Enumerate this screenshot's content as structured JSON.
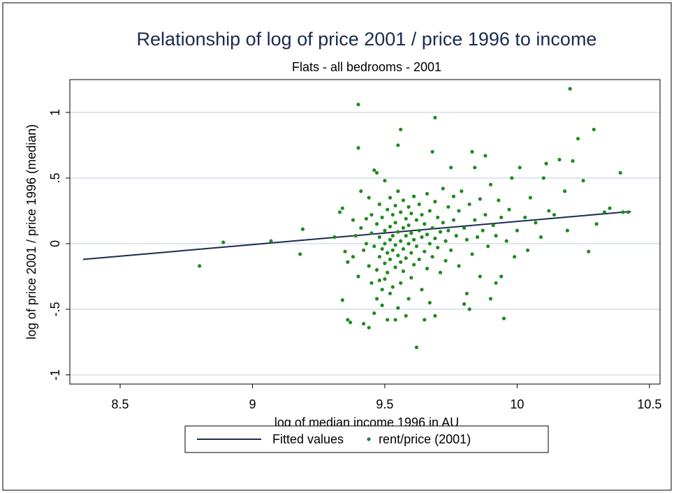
{
  "chart_data": {
    "type": "scatter",
    "title": "Relationship of log of price 2001 / price 1996 to income",
    "subtitle": "Flats - all bedrooms - 2001",
    "x_label": "log of median income 1996 in AU",
    "y_label": "log of price 2001 / price 1996 (median)",
    "xlim": [
      8.31,
      10.54
    ],
    "ylim": [
      -1.07,
      1.25
    ],
    "xticks": [
      8.5,
      9,
      9.5,
      10,
      10.5
    ],
    "yticks": [
      -1,
      {
        "value": -0.5,
        "label": "-.5"
      },
      0,
      {
        "value": 0.5,
        "label": ".5"
      },
      1
    ],
    "grid": true,
    "legend": "bottom",
    "series": [
      {
        "name": "Fitted values",
        "type": "line",
        "color": "#1a2b4f",
        "x": [
          8.36,
          10.43
        ],
        "values": [
          -0.12,
          0.245
        ]
      },
      {
        "name": "rent/price (2001)",
        "type": "scatter",
        "color": "#1f8a1f",
        "x": [
          8.8,
          8.89,
          9.07,
          9.18,
          9.19,
          9.31,
          9.33,
          9.34,
          9.35,
          9.34,
          9.36,
          9.36,
          9.37,
          9.38,
          9.38,
          9.39,
          9.4,
          9.4,
          9.4,
          9.41,
          9.41,
          9.42,
          9.42,
          9.43,
          9.43,
          9.44,
          9.44,
          9.44,
          9.45,
          9.45,
          9.45,
          9.46,
          9.46,
          9.46,
          9.47,
          9.47,
          9.47,
          9.47,
          9.48,
          9.48,
          9.48,
          9.48,
          9.49,
          9.49,
          9.49,
          9.49,
          9.5,
          9.5,
          9.5,
          9.5,
          9.5,
          9.51,
          9.51,
          9.51,
          9.51,
          9.52,
          9.52,
          9.52,
          9.52,
          9.52,
          9.53,
          9.53,
          9.53,
          9.53,
          9.54,
          9.54,
          9.54,
          9.54,
          9.54,
          9.55,
          9.55,
          9.55,
          9.55,
          9.55,
          9.56,
          9.56,
          9.56,
          9.56,
          9.56,
          9.57,
          9.57,
          9.57,
          9.57,
          9.58,
          9.58,
          9.58,
          9.58,
          9.59,
          9.59,
          9.59,
          9.59,
          9.6,
          9.6,
          9.6,
          9.6,
          9.61,
          9.61,
          9.61,
          9.62,
          9.62,
          9.62,
          9.63,
          9.63,
          9.63,
          9.64,
          9.64,
          9.64,
          9.65,
          9.65,
          9.65,
          9.66,
          9.66,
          9.66,
          9.67,
          9.67,
          9.67,
          9.68,
          9.68,
          9.68,
          9.69,
          9.69,
          9.69,
          9.69,
          9.7,
          9.7,
          9.71,
          9.71,
          9.72,
          9.72,
          9.73,
          9.73,
          9.74,
          9.74,
          9.75,
          9.75,
          9.76,
          9.76,
          9.77,
          9.78,
          9.78,
          9.79,
          9.8,
          9.8,
          9.81,
          9.81,
          9.82,
          9.82,
          9.83,
          9.83,
          9.84,
          9.84,
          9.85,
          9.86,
          9.86,
          9.87,
          9.88,
          9.88,
          9.89,
          9.9,
          9.9,
          9.91,
          9.92,
          9.92,
          9.93,
          9.94,
          9.94,
          9.95,
          9.96,
          9.97,
          9.98,
          9.99,
          10.0,
          10.01,
          10.03,
          10.04,
          10.05,
          10.07,
          10.09,
          10.1,
          10.11,
          10.12,
          10.14,
          10.16,
          10.18,
          10.19,
          10.2,
          10.21,
          10.23,
          10.25,
          10.27,
          10.29,
          10.3,
          10.33,
          10.35,
          10.39,
          10.4,
          10.42
        ],
        "values": [
          -0.17,
          0.01,
          0.02,
          -0.08,
          0.11,
          0.05,
          0.24,
          0.27,
          -0.06,
          -0.43,
          -0.14,
          -0.58,
          -0.6,
          0.18,
          -0.1,
          0.06,
          1.06,
          0.73,
          -0.25,
          0.4,
          0.12,
          -0.05,
          -0.61,
          0.19,
          0.0,
          -0.64,
          0.35,
          -0.17,
          0.22,
          0.08,
          -0.3,
          0.56,
          -0.02,
          -0.53,
          0.54,
          0.15,
          -0.2,
          -0.42,
          0.3,
          0.05,
          -0.1,
          -0.28,
          0.2,
          -0.04,
          -0.35,
          -0.47,
          0.48,
          0.1,
          0.0,
          -0.15,
          -0.27,
          0.26,
          -0.07,
          -0.22,
          -0.58,
          0.35,
          0.13,
          0.03,
          -0.12,
          -0.38,
          0.22,
          0.06,
          -0.05,
          -0.33,
          0.29,
          0.16,
          -0.01,
          -0.18,
          -0.58,
          0.75,
          0.4,
          0.09,
          -0.09,
          -0.49,
          0.87,
          0.24,
          0.02,
          -0.14,
          -0.3,
          0.33,
          0.12,
          -0.04,
          -0.21,
          0.19,
          0.06,
          -0.11,
          -0.55,
          0.28,
          0.14,
          0.0,
          -0.42,
          0.23,
          0.08,
          -0.07,
          -0.26,
          0.36,
          0.03,
          -0.16,
          0.18,
          -0.02,
          -0.79,
          0.3,
          0.1,
          -0.12,
          0.22,
          0.05,
          -0.35,
          0.15,
          -0.06,
          -0.58,
          0.38,
          0.07,
          -0.19,
          0.25,
          0.0,
          -0.45,
          0.7,
          0.12,
          -0.1,
          0.96,
          0.32,
          0.04,
          -0.55,
          0.2,
          -0.03,
          0.09,
          -0.22,
          0.42,
          0.16,
          0.02,
          -0.13,
          0.28,
          0.1,
          0.58,
          -0.05,
          0.36,
          0.18,
          0.06,
          -0.17,
          0.25,
          0.4,
          0.12,
          -0.46,
          -0.38,
          0.03,
          0.3,
          -0.5,
          0.7,
          -0.08,
          0.58,
          0.18,
          0.05,
          0.34,
          -0.25,
          0.1,
          0.67,
          0.22,
          -0.02,
          0.45,
          -0.42,
          0.14,
          -0.3,
          0.06,
          0.33,
          -0.25,
          0.2,
          -0.57,
          0.02,
          0.26,
          0.5,
          -0.1,
          0.1,
          0.58,
          0.2,
          -0.05,
          0.35,
          0.16,
          0.05,
          0.5,
          0.61,
          0.25,
          0.22,
          0.64,
          0.4,
          0.1,
          1.18,
          0.63,
          0.8,
          0.48,
          -0.06,
          0.87,
          0.15,
          0.24,
          0.27,
          0.54,
          0.24,
          0.24
        ]
      }
    ]
  }
}
